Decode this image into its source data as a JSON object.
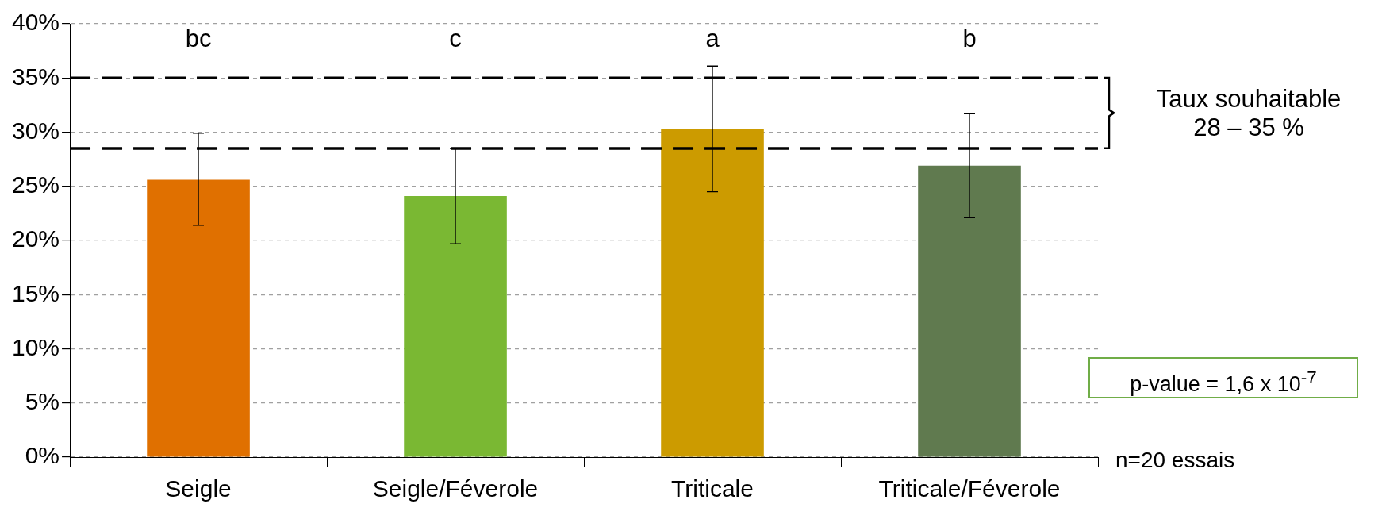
{
  "chart_data": {
    "type": "bar",
    "categories": [
      "Seigle",
      "Seigle/Féverole",
      "Triticale",
      "Triticale/Féverole"
    ],
    "values": [
      25.6,
      24.1,
      30.3,
      26.9
    ],
    "colors": [
      "#e07000",
      "#7ab833",
      "#cc9b00",
      "#607a4f"
    ],
    "errors": [
      [
        21.4,
        29.9
      ],
      [
        19.7,
        28.5
      ],
      [
        24.5,
        36.1
      ],
      [
        22.1,
        31.7
      ]
    ],
    "ylim": [
      0,
      40
    ],
    "yticks": [
      {
        "value": 0,
        "label": "0%"
      },
      {
        "value": 5,
        "label": "5%"
      },
      {
        "value": 10,
        "label": "10%"
      },
      {
        "value": 15,
        "label": "15%"
      },
      {
        "value": 20,
        "label": "20%"
      },
      {
        "value": 25,
        "label": "25%"
      },
      {
        "value": 30,
        "label": "30%"
      },
      {
        "value": 35,
        "label": "35%"
      },
      {
        "value": 40,
        "label": "40%"
      }
    ],
    "grid": "y",
    "ref_lines": [
      {
        "axis": "y",
        "value": 35,
        "color": "#000000",
        "line_style": "dashed"
      },
      {
        "axis": "y",
        "value": 28.5,
        "color": "#000000",
        "line_style": "dashed"
      }
    ],
    "annotations": [
      "bc",
      "c",
      "a",
      "b",
      "Taux souhaitable\n28 – 35 %",
      "p-value = 1,6 x 10$^{-7}$",
      "n=20 essais"
    ]
  }
}
